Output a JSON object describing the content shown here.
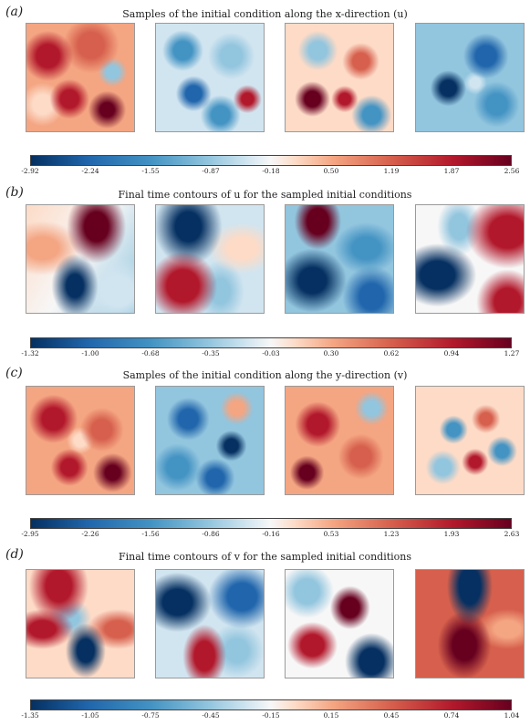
{
  "panels": [
    {
      "label": "(a)",
      "title": "Samples of the initial condition along the x-direction (u)",
      "ticks": [
        "-2.92",
        "-2.24",
        "-1.55",
        "-0.87",
        "-0.18",
        "0.50",
        "1.19",
        "1.87",
        "2.56"
      ]
    },
    {
      "label": "(b)",
      "title": "Final time contours of u for the sampled initial conditions",
      "ticks": [
        "-1.32",
        "-1.00",
        "-0.68",
        "-0.35",
        "-0.03",
        "0.30",
        "0.62",
        "0.94",
        "1.27"
      ]
    },
    {
      "label": "(c)",
      "title": "Samples of the initial condition along the y-direction (v)",
      "ticks": [
        "-2.95",
        "-2.26",
        "-1.56",
        "-0.86",
        "-0.16",
        "0.53",
        "1.23",
        "1.93",
        "2.63"
      ]
    },
    {
      "label": "(d)",
      "title": "Final time contours of v for the sampled initial conditions",
      "ticks": [
        "-1.35",
        "-1.05",
        "-0.75",
        "-0.45",
        "-0.15",
        "0.15",
        "0.45",
        "0.74",
        "1.04"
      ]
    }
  ],
  "colors": {
    "deep_blue": "#053061",
    "blue": "#2166ac",
    "light_blue": "#92c5de",
    "white": "#f7f7f7",
    "light_red": "#f4a582",
    "red": "#b2182b",
    "deep_red": "#67001f"
  }
}
